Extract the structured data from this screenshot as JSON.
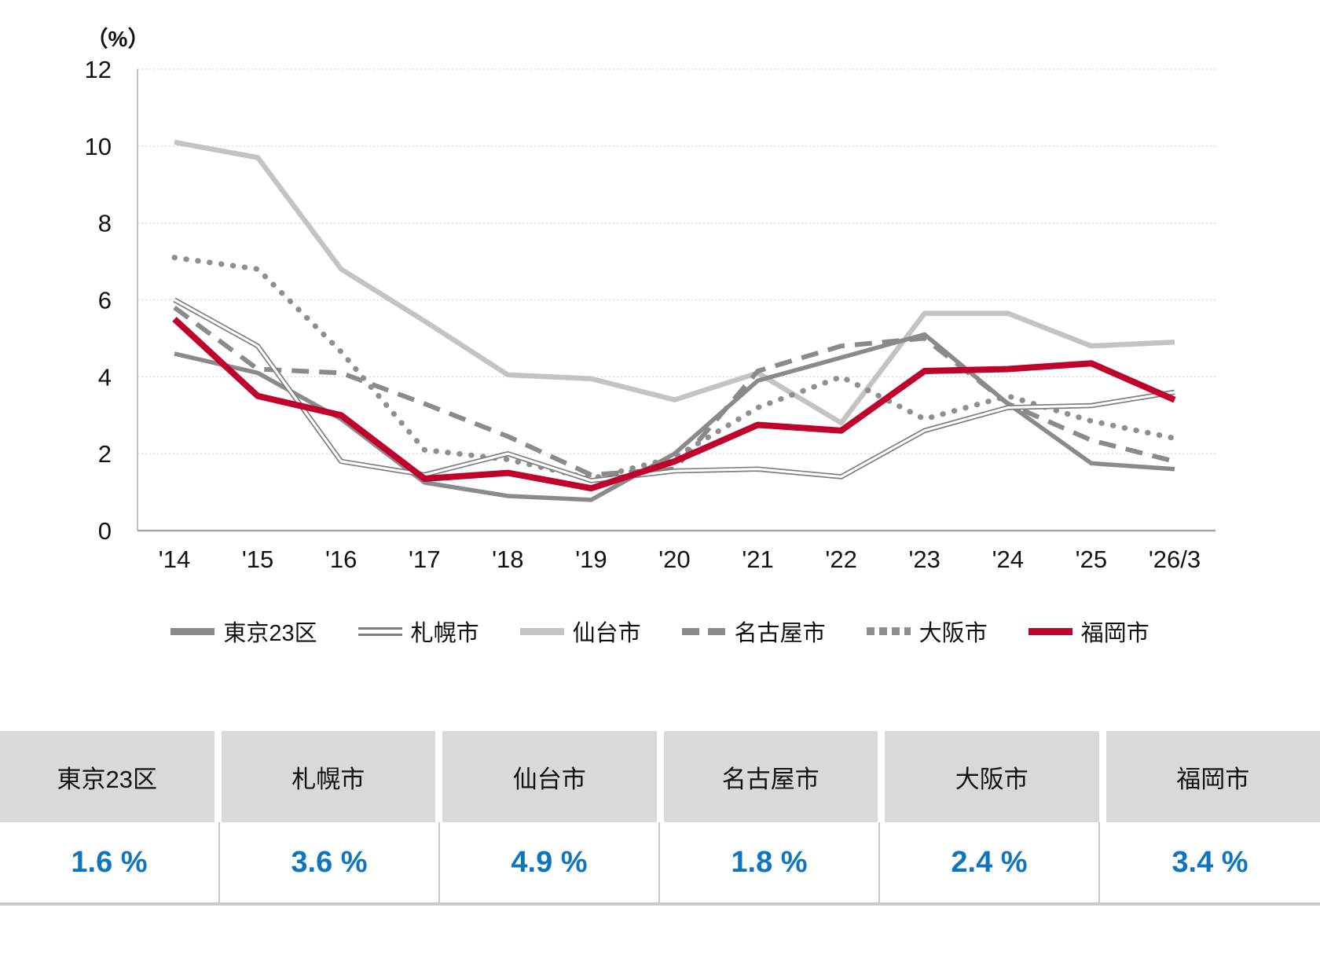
{
  "chart_data": {
    "type": "line",
    "title": "",
    "unit_label": "（%）",
    "ylabel": "%",
    "ylim": [
      0,
      12
    ],
    "y_ticks": [
      0,
      2,
      4,
      6,
      8,
      10,
      12
    ],
    "grid": "horizontal-dotted",
    "legend_position": "bottom",
    "x_labels": [
      "'14",
      "'15",
      "'16",
      "'17",
      "'18",
      "'19",
      "'20",
      "'21",
      "'22",
      "'23",
      "'24",
      "'25",
      "'26/3"
    ],
    "series": [
      {
        "key": "tokyo23",
        "name": "東京23区",
        "style": "solid",
        "color": "#8a8a8a",
        "width": 5.5,
        "values": [
          4.6,
          4.1,
          2.9,
          1.25,
          0.9,
          0.8,
          2.0,
          3.9,
          4.5,
          5.1,
          3.3,
          1.75,
          1.6
        ]
      },
      {
        "key": "sapporo",
        "name": "札幌市",
        "style": "double",
        "color": "#7f7f7f",
        "width": 6.5,
        "values": [
          6.0,
          4.8,
          1.8,
          1.45,
          2.0,
          1.3,
          1.55,
          1.6,
          1.4,
          2.6,
          3.2,
          3.25,
          3.6
        ]
      },
      {
        "key": "sendai",
        "name": "仙台市",
        "style": "solid",
        "color": "#c3c3c3",
        "width": 6.5,
        "values": [
          10.1,
          9.7,
          6.8,
          5.45,
          4.05,
          3.95,
          3.4,
          4.1,
          2.8,
          5.65,
          5.65,
          4.8,
          4.9
        ]
      },
      {
        "key": "nagoya",
        "name": "名古屋市",
        "style": "dashed",
        "color": "#8a8a8a",
        "width": 6,
        "values": [
          5.8,
          4.2,
          4.1,
          3.3,
          2.45,
          1.45,
          1.6,
          4.15,
          4.8,
          5.0,
          3.3,
          2.35,
          1.8
        ]
      },
      {
        "key": "osaka",
        "name": "大阪市",
        "style": "dotted",
        "color": "#8f8f8f",
        "width": 7,
        "values": [
          7.1,
          6.8,
          4.65,
          2.1,
          1.85,
          1.35,
          1.9,
          3.2,
          4.0,
          2.9,
          3.5,
          2.85,
          2.4
        ]
      },
      {
        "key": "fukuoka",
        "name": "福岡市",
        "style": "solid",
        "color": "#c0032c",
        "width": 8,
        "values": [
          5.5,
          3.5,
          3.0,
          1.35,
          1.5,
          1.1,
          1.8,
          2.75,
          2.6,
          4.15,
          4.2,
          4.35,
          3.4
        ]
      }
    ],
    "draw_order": [
      2,
      4,
      3,
      0,
      1,
      5
    ]
  },
  "table": {
    "header_bg": "#d9d9d9",
    "value_color": "#0e76c0",
    "rule_color": "#c9c9c9",
    "columns": [
      {
        "key": "tokyo23",
        "label": "東京23区",
        "value": "1.6 %"
      },
      {
        "key": "sapporo",
        "label": "札幌市",
        "value": "3.6 %"
      },
      {
        "key": "sendai",
        "label": "仙台市",
        "value": "4.9 %"
      },
      {
        "key": "nagoya",
        "label": "名古屋市",
        "value": "1.8 %"
      },
      {
        "key": "osaka",
        "label": "大阪市",
        "value": "2.4 %"
      },
      {
        "key": "fukuoka",
        "label": "福岡市",
        "value": "3.4 %"
      }
    ]
  }
}
